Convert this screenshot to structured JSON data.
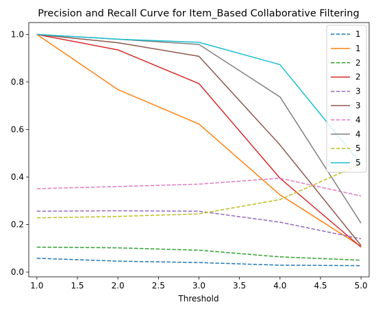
{
  "chart_data": {
    "type": "line",
    "title": "Precision and Recall Curve for Item_Based Collaborative Filtering",
    "xlabel": "Threshold",
    "ylabel": "",
    "x": [
      1.0,
      2.0,
      3.0,
      4.0,
      5.0
    ],
    "xlim": [
      0.9,
      5.1
    ],
    "ylim": [
      -0.02,
      1.05
    ],
    "xticks": [
      1.0,
      1.5,
      2.0,
      2.5,
      3.0,
      3.5,
      4.0,
      4.5,
      5.0
    ],
    "xtick_labels": [
      "1.0",
      "1.5",
      "2.0",
      "2.5",
      "3.0",
      "3.5",
      "4.0",
      "4.5",
      "5.0"
    ],
    "yticks": [
      0.0,
      0.2,
      0.4,
      0.6,
      0.8,
      1.0
    ],
    "ytick_labels": [
      "0.0",
      "0.2",
      "0.4",
      "0.6",
      "0.8",
      "1.0"
    ],
    "grid": false,
    "legend_position": "top-right",
    "series": [
      {
        "name": "1",
        "style": "dashed",
        "color": "#1f77b4",
        "values": [
          0.058,
          0.046,
          0.04,
          0.029,
          0.027
        ]
      },
      {
        "name": "1",
        "style": "solid",
        "color": "#ff7f0e",
        "values": [
          1.0,
          0.768,
          0.623,
          0.325,
          0.108
        ]
      },
      {
        "name": "2",
        "style": "dashed",
        "color": "#2ca02c",
        "values": [
          0.105,
          0.102,
          0.092,
          0.064,
          0.05
        ]
      },
      {
        "name": "2",
        "style": "solid",
        "color": "#d62728",
        "values": [
          1.0,
          0.935,
          0.793,
          0.395,
          0.105
        ]
      },
      {
        "name": "3",
        "style": "dashed",
        "color": "#9467bd",
        "values": [
          0.256,
          0.258,
          0.256,
          0.21,
          0.14
        ]
      },
      {
        "name": "3",
        "style": "solid",
        "color": "#8c564b",
        "values": [
          1.0,
          0.965,
          0.908,
          0.535,
          0.112
        ]
      },
      {
        "name": "4",
        "style": "dashed",
        "color": "#e377c2",
        "values": [
          0.351,
          0.36,
          0.37,
          0.395,
          0.32
        ]
      },
      {
        "name": "4",
        "style": "solid",
        "color": "#7f7f7f",
        "values": [
          1.0,
          0.98,
          0.958,
          0.737,
          0.206
        ]
      },
      {
        "name": "5",
        "style": "dashed",
        "color": "#bcbd22",
        "values": [
          0.228,
          0.234,
          0.245,
          0.305,
          0.455
        ]
      },
      {
        "name": "5",
        "style": "solid",
        "color": "#17becf",
        "values": [
          1.0,
          0.98,
          0.967,
          0.873,
          0.455
        ]
      }
    ]
  }
}
